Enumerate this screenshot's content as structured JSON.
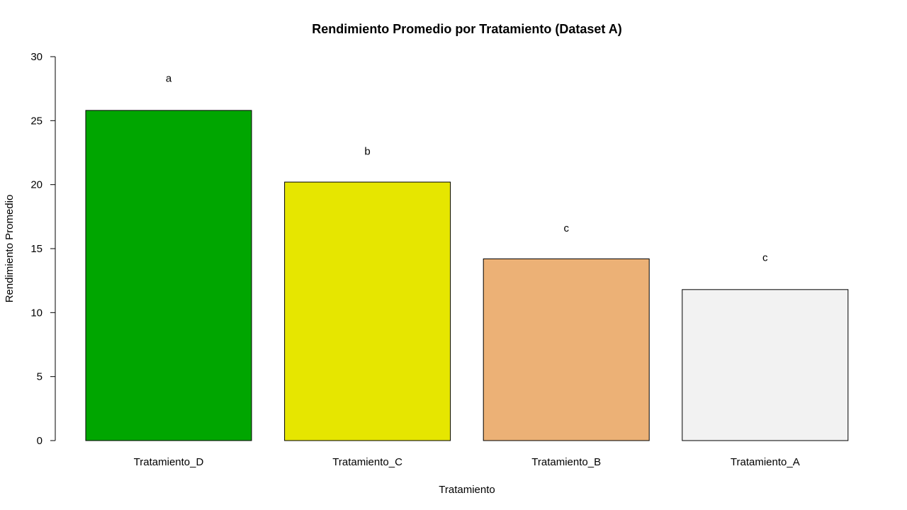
{
  "chart_data": {
    "type": "bar",
    "title": "Rendimiento Promedio por Tratamiento (Dataset A)",
    "xlabel": "Tratamiento",
    "ylabel": "Rendimiento Promedio",
    "ylim": [
      0,
      30
    ],
    "yticks": [
      0,
      5,
      10,
      15,
      20,
      25,
      30
    ],
    "categories": [
      "Tratamiento_D",
      "Tratamiento_C",
      "Tratamiento_B",
      "Tratamiento_A"
    ],
    "values": [
      25.8,
      20.2,
      14.2,
      11.8
    ],
    "group_letters": [
      "a",
      "b",
      "c",
      "c"
    ],
    "letter_positions": [
      28.3,
      22.6,
      16.6,
      14.3
    ],
    "colors": [
      "#00a600",
      "#e6e600",
      "#ecb176",
      "#f2f2f2"
    ],
    "grid": false,
    "legend": "none"
  }
}
